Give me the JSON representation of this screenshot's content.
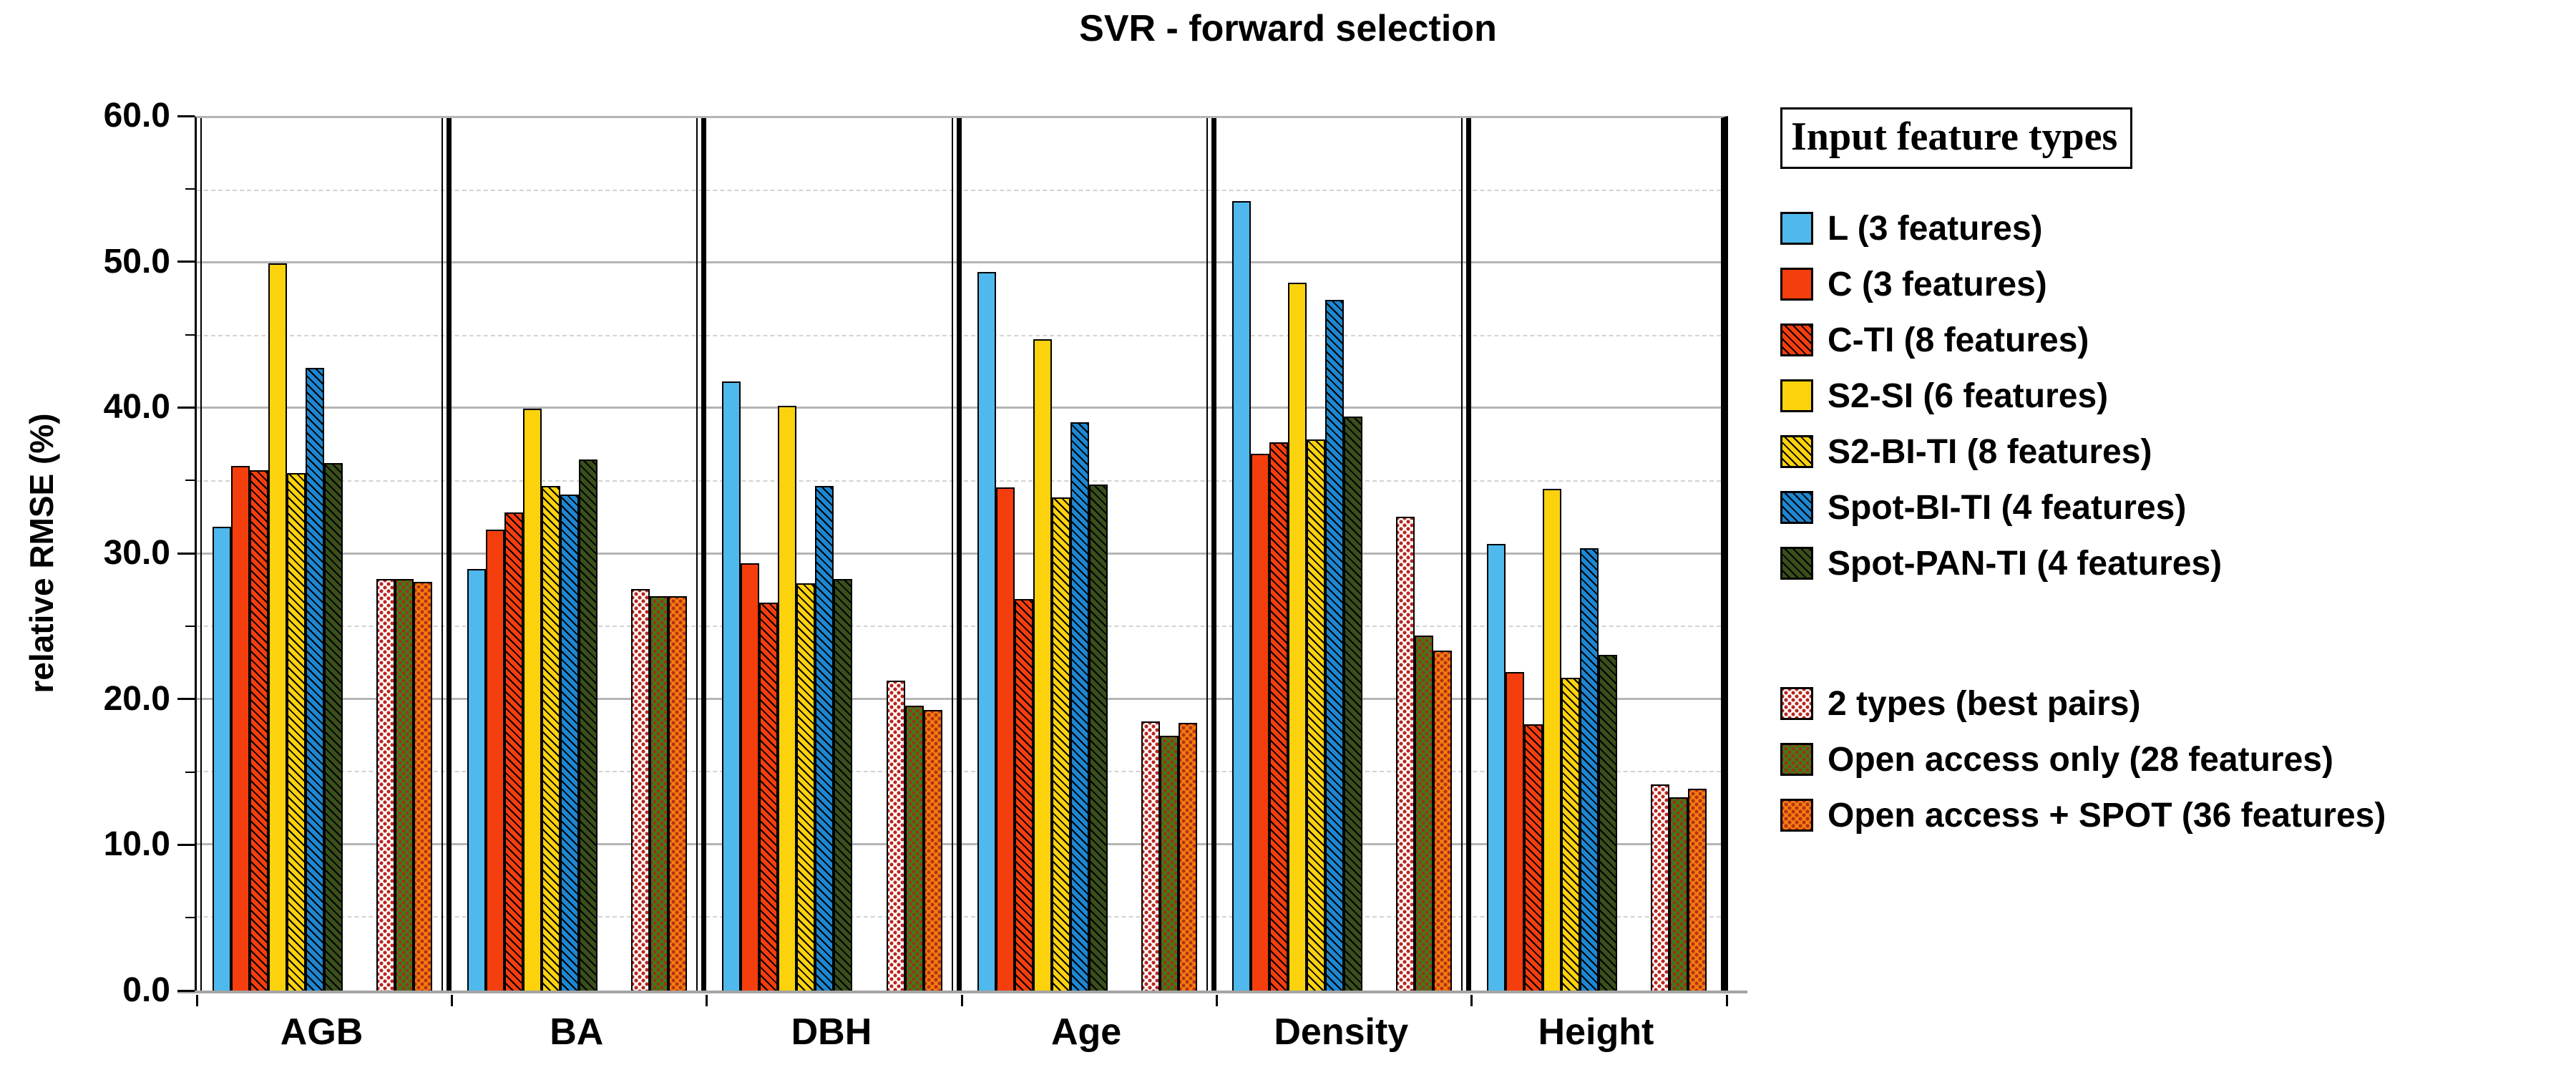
{
  "title": "SVR - forward selection",
  "y_axis": {
    "label": "relative RMSE (%)",
    "max": 60,
    "major_step": 10,
    "minor_step": 5,
    "tick_labels": [
      "0.0",
      "10.0",
      "20.0",
      "30.0",
      "40.0",
      "50.0",
      "60.0"
    ]
  },
  "x_axis": {
    "categories": [
      "AGB",
      "BA",
      "DBH",
      "Age",
      "Density",
      "Height"
    ]
  },
  "legend": {
    "title": "Input feature types",
    "gap_after_index": 6
  },
  "chart_data": {
    "type": "bar",
    "title": "SVR - forward selection",
    "xlabel": "",
    "ylabel": "relative RMSE (%)",
    "ylim": [
      0,
      60
    ],
    "grid": "horizontal, major solid at 10s, minor dashed at 5s",
    "legend_position": "right",
    "categories": [
      "AGB",
      "BA",
      "DBH",
      "Age",
      "Density",
      "Height"
    ],
    "series": [
      {
        "name": "L (3 features)",
        "color": "#4FB8EC",
        "pattern": "solid",
        "values": [
          31.9,
          29.0,
          41.9,
          49.4,
          54.3,
          30.7
        ]
      },
      {
        "name": "C (3 features)",
        "color": "#F53E0D",
        "pattern": "solid",
        "values": [
          36.1,
          31.7,
          29.4,
          34.6,
          36.9,
          21.9
        ]
      },
      {
        "name": "C-TI (8 features)",
        "color": "#F53E0D",
        "pattern": "hatch",
        "values": [
          35.8,
          32.9,
          26.7,
          26.9,
          37.7,
          18.3
        ]
      },
      {
        "name": "S2-SI (6 features)",
        "color": "#FCD20D",
        "pattern": "solid",
        "values": [
          50.0,
          40.0,
          40.2,
          44.8,
          48.7,
          34.5
        ]
      },
      {
        "name": "S2-BI-TI (8 features)",
        "color": "#FCD20D",
        "pattern": "hatch",
        "values": [
          35.6,
          34.7,
          28.0,
          33.9,
          37.9,
          21.5
        ]
      },
      {
        "name": "Spot-BI-TI (4 features)",
        "color": "#1E87D2",
        "pattern": "hatch",
        "values": [
          42.8,
          34.1,
          34.7,
          39.1,
          47.5,
          30.4
        ]
      },
      {
        "name": "Spot-PAN-TI (4 features)",
        "color": "#3A4F1B",
        "pattern": "hatch",
        "values": [
          36.3,
          36.5,
          28.3,
          34.8,
          39.5,
          23.1
        ]
      },
      {
        "name": "2 types (best pairs)",
        "color": "#FFFFFF",
        "dot": "#B9251D",
        "pattern": "checker",
        "cluster": "extra",
        "values": [
          28.3,
          27.6,
          21.3,
          18.5,
          32.6,
          14.2
        ]
      },
      {
        "name": "Open access only (28 features)",
        "color": "#3B7E18",
        "dot": "#A03018",
        "pattern": "checker",
        "cluster": "extra",
        "values": [
          28.3,
          27.1,
          19.6,
          17.5,
          24.4,
          13.3
        ]
      },
      {
        "name": "Open access + SPOT (36 features)",
        "color": "#F57F0A",
        "dot": "#B5301C",
        "pattern": "checker",
        "cluster": "extra",
        "values": [
          28.1,
          27.1,
          19.3,
          18.4,
          23.4,
          13.9
        ]
      }
    ]
  }
}
